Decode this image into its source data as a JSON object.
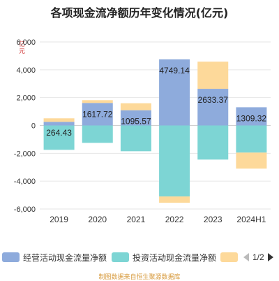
{
  "title": "各项现金流净额历年变化情况(亿元)",
  "unit_label": "亿元",
  "source": "制图数据来自恒生聚源数据库",
  "colors": {
    "operating": "#8eabdc",
    "investing": "#7dd5d4",
    "financing": "#fdd99a",
    "axis_text": "#333333",
    "grid": "#e6e6e6"
  },
  "legend": {
    "items": [
      {
        "label": "经营活动现金流量净额",
        "color_key": "operating",
        "icon": "rounded-rect"
      },
      {
        "label": "投资活动现金流量净额",
        "color_key": "investing",
        "icon": "rounded-rect"
      },
      {
        "label": "",
        "color_key": "financing",
        "icon": "rounded-rect"
      }
    ],
    "page": "1/2",
    "prev_icon": "triangle-left-icon",
    "next_icon": "triangle-right-icon"
  },
  "chart_data": {
    "type": "bar",
    "stacked": true,
    "categories": [
      "2019",
      "2020",
      "2021",
      "2022",
      "2023",
      "2024H1"
    ],
    "ylim": [
      -6000,
      6000
    ],
    "yticks": [
      -6000,
      -4000,
      -2000,
      0,
      2000,
      4000,
      6000
    ],
    "ytick_labels": [
      "-6,000",
      "-4,000",
      "-2,000",
      "0",
      "2,000",
      "4,000",
      "6,000"
    ],
    "grid": true,
    "legend_position": "bottom",
    "series": [
      {
        "name": "经营活动现金流量净额",
        "color_key": "operating",
        "values": [
          264.43,
          1617.72,
          1095.57,
          4749.14,
          2633.37,
          1309.32
        ],
        "labeled": true
      },
      {
        "name": "投资活动现金流量净额",
        "color_key": "investing",
        "values": [
          -1750,
          -1250,
          -1850,
          -5100,
          -2450,
          -1950
        ],
        "labeled": false
      },
      {
        "color_key": "financing",
        "values": [
          250,
          200,
          500,
          -450,
          1950,
          -1150
        ],
        "labeled": false
      }
    ],
    "data_labels": [
      "264.43",
      "1617.72",
      "1095.57",
      "4749.14",
      "2633.37",
      "1309.32"
    ]
  }
}
